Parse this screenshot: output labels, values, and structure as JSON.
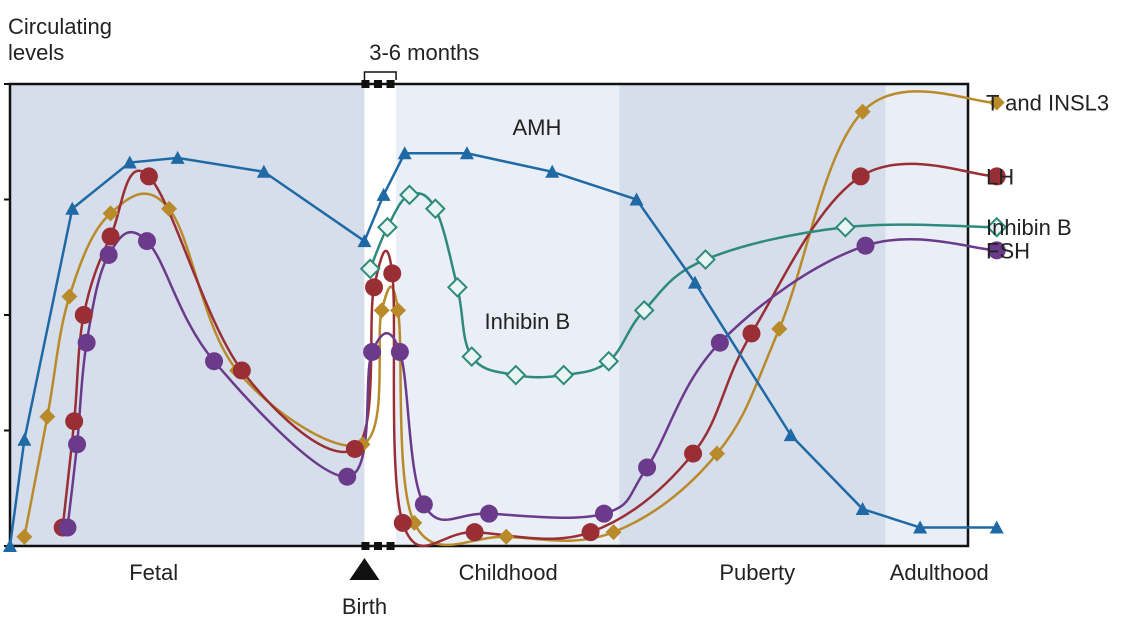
{
  "chart_data": {
    "type": "line",
    "ylabel": "Circulating levels",
    "ylabel_lines": [
      "Circulating",
      "levels"
    ],
    "x_range": [
      0,
      100
    ],
    "y_range": [
      0,
      100
    ],
    "grid": false,
    "y_ticks": [
      0,
      25,
      50,
      75,
      100
    ],
    "periods": [
      {
        "label": "Fetal",
        "x_start": 0,
        "x_end": 37,
        "x_label": 15,
        "shade": "#d6deec"
      },
      {
        "label": "",
        "x_start": 37,
        "x_end": 40.3,
        "x_label": 38.6,
        "shade": "#ffffff"
      },
      {
        "label": "Childhood",
        "x_start": 40.3,
        "x_end": 63.6,
        "x_label": 52,
        "shade": "#e9eef7"
      },
      {
        "label": "Puberty",
        "x_start": 63.6,
        "x_end": 91.4,
        "x_label": 78,
        "shade": "#d6deec"
      },
      {
        "label": "Adulthood",
        "x_start": 91.4,
        "x_end": 100,
        "x_label": 97,
        "shade": "#e9eef7"
      }
    ],
    "annotations": {
      "birth_label": "Birth",
      "birth_x": 37,
      "months_label": "3-6 months",
      "months_range": [
        37,
        40.3
      ],
      "amh_label": "AMH",
      "amh_label_pos": [
        55,
        89
      ],
      "inhibin_label": "Inhibin B",
      "inhibin_label_pos": [
        54,
        47
      ]
    },
    "series": [
      {
        "name": "AMH",
        "color": "#1f6aa5",
        "marker": "triangle",
        "legend": false,
        "points": [
          [
            0,
            0
          ],
          [
            1.5,
            23
          ],
          [
            6.5,
            73
          ],
          [
            12.5,
            83
          ],
          [
            17.5,
            84
          ],
          [
            26.5,
            81
          ],
          [
            37,
            66
          ],
          [
            39,
            76
          ],
          [
            41.2,
            85
          ],
          [
            47.7,
            85
          ],
          [
            56.6,
            81
          ],
          [
            65.4,
            75
          ],
          [
            71.5,
            57
          ],
          [
            81.5,
            24
          ],
          [
            89,
            8
          ],
          [
            95,
            4
          ],
          [
            103,
            4
          ]
        ]
      },
      {
        "name": "T and INSL3",
        "color": "#b88a2a",
        "marker": "diamond",
        "legend": true,
        "points": [
          [
            1.5,
            2
          ],
          [
            3.9,
            28
          ],
          [
            6.2,
            54
          ],
          [
            10.5,
            72
          ],
          [
            16.6,
            73
          ],
          [
            23.7,
            38
          ],
          [
            36.8,
            22
          ],
          [
            38.8,
            51
          ],
          [
            40.5,
            51
          ],
          [
            42.2,
            5
          ],
          [
            51.8,
            2
          ],
          [
            63,
            3
          ],
          [
            73.8,
            20
          ],
          [
            80.3,
            47
          ],
          [
            89,
            94
          ],
          [
            103,
            96
          ]
        ]
      },
      {
        "name": "LH",
        "color": "#9a2e35",
        "marker": "circle",
        "legend": true,
        "points": [
          [
            5.5,
            4
          ],
          [
            6.7,
            27
          ],
          [
            7.7,
            50
          ],
          [
            10.5,
            67
          ],
          [
            14.5,
            80
          ],
          [
            24.2,
            38
          ],
          [
            36,
            21
          ],
          [
            38,
            56
          ],
          [
            39.9,
            59
          ],
          [
            41,
            5
          ],
          [
            48.5,
            3
          ],
          [
            60.6,
            3
          ],
          [
            71.3,
            20
          ],
          [
            77.4,
            46
          ],
          [
            88.8,
            80
          ],
          [
            103,
            80
          ]
        ]
      },
      {
        "name": "FSH",
        "color": "#6b3a8a",
        "marker": "circle",
        "legend": true,
        "points": [
          [
            6,
            4
          ],
          [
            7,
            22
          ],
          [
            8,
            44
          ],
          [
            10.3,
            63
          ],
          [
            14.3,
            66
          ],
          [
            21.3,
            40
          ],
          [
            35.2,
            15
          ],
          [
            37.8,
            42
          ],
          [
            40.7,
            42
          ],
          [
            43.2,
            9
          ],
          [
            50,
            7
          ],
          [
            62,
            7
          ],
          [
            66.5,
            17
          ],
          [
            74.1,
            44
          ],
          [
            89.3,
            65
          ],
          [
            103,
            64
          ]
        ]
      },
      {
        "name": "Inhibin B",
        "color": "#2e8b7b",
        "marker": "diamond_open",
        "legend": true,
        "points": [
          [
            37.6,
            60
          ],
          [
            39.4,
            69
          ],
          [
            41.7,
            76
          ],
          [
            44.4,
            73
          ],
          [
            46.7,
            56
          ],
          [
            48.2,
            41
          ],
          [
            52.8,
            37
          ],
          [
            57.8,
            37
          ],
          [
            62.5,
            40
          ],
          [
            66.2,
            51
          ],
          [
            72.6,
            62
          ],
          [
            87.2,
            69
          ],
          [
            103,
            69
          ]
        ]
      }
    ]
  }
}
